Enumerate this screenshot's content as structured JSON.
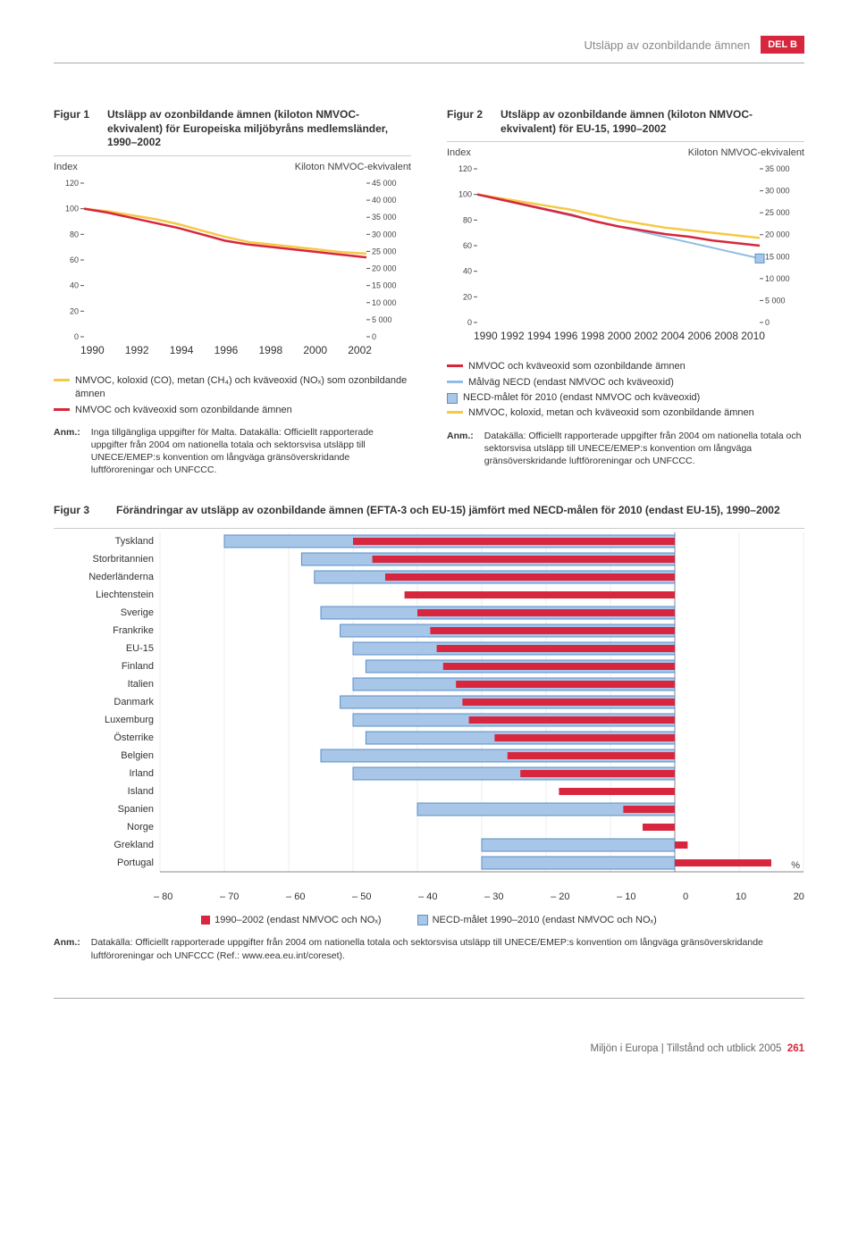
{
  "header": {
    "section_title": "Utsläpp av ozonbildande ämnen",
    "badge": "DEL B"
  },
  "colors": {
    "red": "#d7263d",
    "yellow": "#f6c945",
    "blue_line": "#8fbde3",
    "necd_fill": "#a8c6e8",
    "necd_border": "#5a8fc7",
    "rule": "#aaaaaa",
    "grid": "#e0e0e0",
    "text": "#333333"
  },
  "fig1": {
    "label": "Figur 1",
    "title": "Utsläpp av ozonbildande ämnen (kiloton NMVOC-ekvivalent) för Europeiska miljöbyråns medlemsländer, 1990–2002",
    "left_axis": "Index",
    "right_axis": "Kiloton NMVOC-ekvivalent",
    "left_ticks": [
      120,
      100,
      80,
      60,
      40,
      20,
      0
    ],
    "right_ticks": [
      "45 000",
      "40 000",
      "35 000",
      "30 000",
      "25 000",
      "20 000",
      "15 000",
      "10 000",
      "5 000",
      "0"
    ],
    "x_ticks": [
      "1990",
      "1992",
      "1994",
      "1996",
      "1998",
      "2000",
      "2002"
    ],
    "series": {
      "yellow_index": [
        100,
        98,
        95,
        92,
        88,
        83,
        78,
        74,
        72,
        70,
        68,
        66,
        65
      ],
      "red_index": [
        100,
        97,
        93,
        89,
        85,
        80,
        75,
        72,
        70,
        68,
        66,
        64,
        62
      ]
    },
    "legend": [
      {
        "color": "#f6c945",
        "text": "NMVOC, koloxid (CO), metan (CH₄) och kväveoxid (NOₓ) som ozonbildande ämnen"
      },
      {
        "color": "#d7263d",
        "text": "NMVOC och kväveoxid som ozonbildande ämnen"
      }
    ],
    "note_label": "Anm.:",
    "note_text": "Inga tillgängliga uppgifter för Malta. Datakälla: Officiellt rapporterade uppgifter från 2004 om nationella totala och sektorsvisa utsläpp till UNECE/EMEP:s konvention om långväga gränsöverskridande luftföroreningar och UNFCCC."
  },
  "fig2": {
    "label": "Figur 2",
    "title": "Utsläpp av ozonbildande ämnen (kiloton NMVOC-ekvivalent) för EU-15, 1990–2002",
    "left_axis": "Index",
    "right_axis": "Kiloton NMVOC-ekvivalent",
    "left_ticks": [
      120,
      100,
      80,
      60,
      40,
      20,
      0
    ],
    "right_ticks": [
      "35 000",
      "30 000",
      "25 000",
      "20 000",
      "15 000",
      "10 000",
      "5 000",
      "0"
    ],
    "x_ticks": [
      "1990",
      "1992",
      "1994",
      "1996",
      "1998",
      "2000",
      "2002",
      "2004",
      "2006",
      "2008",
      "2010"
    ],
    "series": {
      "yellow_index": [
        100,
        97,
        94,
        91,
        88,
        84,
        80,
        77,
        74,
        72,
        70,
        68,
        66
      ],
      "red_index": [
        100,
        96,
        92,
        88,
        84,
        79,
        75,
        72,
        69,
        67,
        64,
        62,
        60
      ],
      "blue_index": [
        100,
        97.5,
        95,
        92.5,
        90,
        87.5,
        85,
        82.5,
        80,
        77.5,
        75,
        72.5,
        70,
        67.5,
        65,
        62.5,
        60,
        57.5,
        55,
        52.5,
        50
      ]
    },
    "necd_point": {
      "x_index": 10,
      "y_index": 50
    },
    "legend": [
      {
        "type": "line",
        "color": "#d7263d",
        "text": "NMVOC och kväveoxid som ozonbildande ämnen"
      },
      {
        "type": "line",
        "color": "#8fbde3",
        "text": "Målväg NECD (endast NMVOC och kväveoxid)"
      },
      {
        "type": "square",
        "text": "NECD-målet för 2010 (endast NMVOC och kväveoxid)"
      },
      {
        "type": "line",
        "color": "#f6c945",
        "text": "NMVOC, koloxid, metan och kväveoxid som ozonbildande ämnen"
      }
    ],
    "note_label": "Anm.:",
    "note_text": "Datakälla: Officiellt rapporterade uppgifter från 2004 om nationella totala och sektorsvisa utsläpp till UNECE/EMEP:s konvention om långväga gränsöverskridande luftföroreningar och UNFCCC."
  },
  "fig3": {
    "label": "Figur 3",
    "title": "Förändringar av utsläpp av ozonbildande ämnen (EFTA-3 och EU-15) jämfört med NECD-målen för 2010 (endast EU-15), 1990–2002",
    "x_min": -80,
    "x_max": 20,
    "x_ticks": [
      "– 80",
      "– 70",
      "– 60",
      "– 50",
      "– 40",
      "– 30",
      "– 20",
      "– 10",
      "0",
      "10",
      "20"
    ],
    "percent_label": "%",
    "countries": [
      {
        "name": "Tyskland",
        "red": -50,
        "necd": -70
      },
      {
        "name": "Storbritannien",
        "red": -47,
        "necd": -58
      },
      {
        "name": "Nederländerna",
        "red": -45,
        "necd": -56
      },
      {
        "name": "Liechtenstein",
        "red": -42,
        "necd": null
      },
      {
        "name": "Sverige",
        "red": -40,
        "necd": -55
      },
      {
        "name": "Frankrike",
        "red": -38,
        "necd": -52
      },
      {
        "name": "EU-15",
        "red": -37,
        "necd": -50
      },
      {
        "name": "Finland",
        "red": -36,
        "necd": -48
      },
      {
        "name": "Italien",
        "red": -34,
        "necd": -50
      },
      {
        "name": "Danmark",
        "red": -33,
        "necd": -52
      },
      {
        "name": "Luxemburg",
        "red": -32,
        "necd": -50
      },
      {
        "name": "Österrike",
        "red": -28,
        "necd": -48
      },
      {
        "name": "Belgien",
        "red": -26,
        "necd": -55
      },
      {
        "name": "Irland",
        "red": -24,
        "necd": -50
      },
      {
        "name": "Island",
        "red": -18,
        "necd": null
      },
      {
        "name": "Spanien",
        "red": -8,
        "necd": -40
      },
      {
        "name": "Norge",
        "red": -5,
        "necd": null
      },
      {
        "name": "Grekland",
        "red": 2,
        "necd": -30
      },
      {
        "name": "Portugal",
        "red": 15,
        "necd": -30
      }
    ],
    "legend": [
      {
        "type": "red",
        "text": "1990–2002 (endast NMVOC och NOₓ)"
      },
      {
        "type": "necd",
        "text": "NECD-målet 1990–2010 (endast NMVOC och NOₓ)"
      }
    ],
    "note_label": "Anm.:",
    "note_text": "Datakälla: Officiellt rapporterade uppgifter från 2004 om nationella totala och sektorsvisa utsläpp till UNECE/EMEP:s konvention om långväga gränsöverskridande luftföroreningar och UNFCCC (Ref.: www.eea.eu.int/coreset)."
  },
  "footer": {
    "text": "Miljön i Europa | Tillstånd och utblick 2005",
    "page": "261"
  }
}
